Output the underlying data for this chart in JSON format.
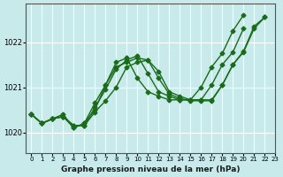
{
  "background_color": "#c8eaea",
  "grid_color": "#ffffff",
  "line_color": "#1a6b1a",
  "title": "Graphe pression niveau de la mer (hPa)",
  "ylim": [
    1019.55,
    1022.85
  ],
  "yticks": [
    1020,
    1021,
    1022
  ],
  "xticks": [
    0,
    1,
    2,
    3,
    4,
    5,
    6,
    7,
    8,
    9,
    10,
    11,
    12,
    13,
    14,
    15,
    16,
    17,
    18,
    19,
    20,
    21,
    22,
    23
  ],
  "series_A_x": [
    0,
    1,
    2,
    3,
    4,
    5,
    6,
    7,
    8,
    9,
    10,
    11,
    12,
    13,
    14,
    15,
    16,
    17,
    18,
    19,
    20,
    21,
    22
  ],
  "series_A_y": [
    1020.4,
    1020.2,
    1020.3,
    1020.4,
    1020.1,
    1020.2,
    1020.5,
    1021.05,
    1021.45,
    1021.55,
    1021.65,
    1021.6,
    1021.2,
    1020.85,
    1020.75,
    1020.7,
    1020.7,
    1020.7,
    1021.05,
    1021.5,
    1021.8,
    1022.35,
    1022.55
  ],
  "series_B_x": [
    0,
    1,
    2,
    3,
    4,
    5,
    6,
    7,
    8,
    9,
    10,
    11,
    12,
    13,
    14,
    15,
    16,
    17,
    18,
    19,
    20,
    21,
    22
  ],
  "series_B_y": [
    1020.4,
    1020.2,
    1020.3,
    1020.35,
    1020.15,
    1020.15,
    1020.45,
    1020.7,
    1021.0,
    1021.45,
    1021.55,
    1021.6,
    1021.35,
    1020.9,
    1020.8,
    1020.72,
    1020.72,
    1020.72,
    1021.05,
    1021.5,
    1021.78,
    1022.3,
    1022.55
  ],
  "series_C_x": [
    0,
    1,
    2,
    3,
    4,
    5,
    6,
    7,
    8,
    9,
    10,
    11,
    12,
    13,
    14,
    15,
    16,
    17,
    18,
    19,
    20
  ],
  "series_C_y": [
    1020.4,
    1020.2,
    1020.3,
    1020.35,
    1020.15,
    1020.15,
    1020.55,
    1020.95,
    1021.4,
    1021.6,
    1021.7,
    1021.3,
    1020.9,
    1020.8,
    1020.72,
    1020.72,
    1020.72,
    1021.05,
    1021.5,
    1021.78,
    1022.3
  ],
  "series_D_x": [
    0,
    1,
    2,
    3,
    4,
    5,
    6,
    7,
    8,
    9,
    10,
    11,
    12,
    13,
    14,
    15,
    16,
    17,
    18,
    19,
    20
  ],
  "series_D_y": [
    1020.4,
    1020.2,
    1020.3,
    1020.35,
    1020.1,
    1020.2,
    1020.65,
    1021.05,
    1021.55,
    1021.65,
    1021.2,
    1020.9,
    1020.8,
    1020.72,
    1020.72,
    1020.72,
    1021.0,
    1021.45,
    1021.75,
    1022.25,
    1022.6
  ]
}
